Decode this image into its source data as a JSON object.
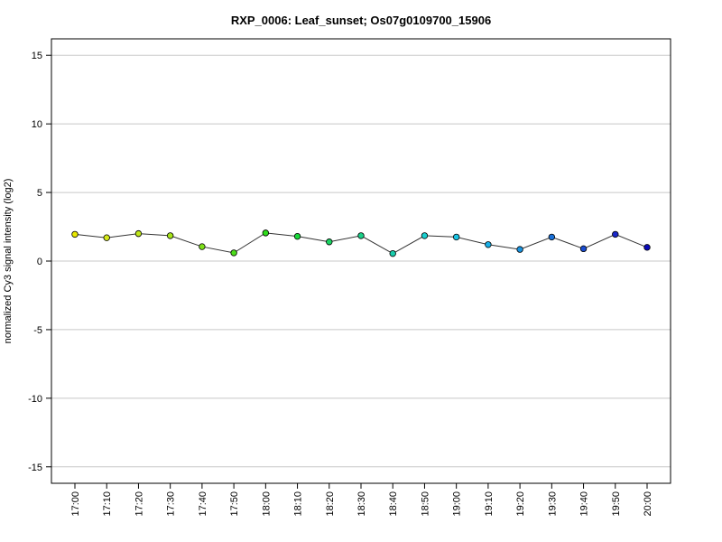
{
  "chart_data": {
    "type": "line",
    "title": "RXP_0006: Leaf_sunset; Os07g0109700_15906",
    "xlabel": "",
    "ylabel": "normalized Cy3 signal intensity (log2)",
    "ylim": [
      -16.2,
      16.2
    ],
    "yticks": [
      15,
      10,
      5,
      0,
      -5,
      -10,
      -15
    ],
    "ytick_labels": [
      "15",
      "10",
      "5",
      "0",
      "-5",
      "-10",
      "-15"
    ],
    "gridlines_y": [
      15,
      10,
      5,
      0,
      -5,
      -10,
      -15
    ],
    "grid": true,
    "categories": [
      "17:00",
      "17:10",
      "17:20",
      "17:30",
      "17:40",
      "17:50",
      "18:00",
      "18:10",
      "18:20",
      "18:30",
      "18:40",
      "18:50",
      "19:00",
      "19:10",
      "19:20",
      "19:30",
      "19:40",
      "19:50",
      "20:00"
    ],
    "values": [
      1.95,
      1.7,
      2.0,
      1.85,
      1.05,
      0.6,
      2.05,
      1.8,
      1.4,
      1.85,
      0.55,
      1.85,
      1.75,
      1.2,
      0.85,
      1.75,
      0.9,
      1.95,
      1.0
    ],
    "point_colors": [
      "#e8e800",
      "#d4e81a",
      "#c0e81a",
      "#a6e41a",
      "#7ee01a",
      "#4cdc1a",
      "#2edc1a",
      "#1ad83a",
      "#1ad462",
      "#1ad088",
      "#1accac",
      "#1ad0d0",
      "#1ac4e4",
      "#1ab0e8",
      "#1a94e0",
      "#1a70d8",
      "#1a4cd0",
      "#1a28c8",
      "#0a0ab8"
    ],
    "line_color": "#333333"
  }
}
